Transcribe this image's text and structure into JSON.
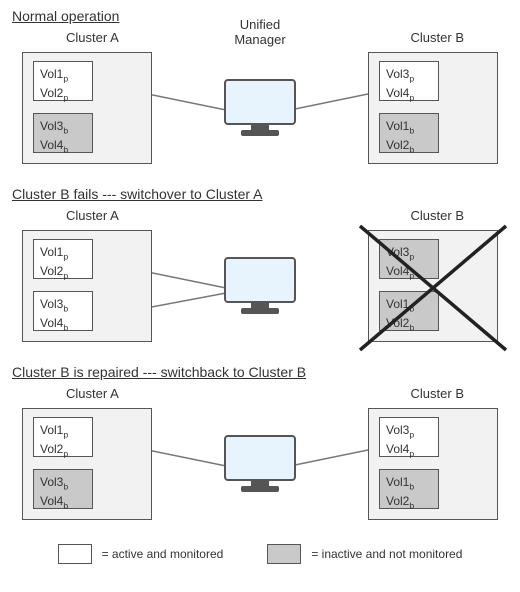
{
  "labels": {
    "unified_manager_line1": "Unified",
    "unified_manager_line2": "Manager",
    "cluster_a": "Cluster A",
    "cluster_b": "Cluster B"
  },
  "volumes": {
    "vol1p": "Vol1<sub>p</sub>",
    "vol2p": "Vol2<sub>p</sub>",
    "vol3p": "Vol3<sub>p</sub>",
    "vol4p": "Vol4<sub>p</sub>",
    "vol1b": "Vol1<sub>b</sub>",
    "vol2b": "Vol2<sub>b</sub>",
    "vol3b": "Vol3<sub>b</sub>",
    "vol4b": "Vol4<sub>b</sub>"
  },
  "scenarios": {
    "s1": {
      "title": "Normal operation"
    },
    "s2": {
      "title": "Cluster B fails --- switchover to Cluster A"
    },
    "s3": {
      "title": "Cluster B is repaired --- switchback to Cluster B"
    }
  },
  "legend": {
    "active": "= active and monitored",
    "inactive": "= inactive and not monitored"
  },
  "style": {
    "active_bg": "#ffffff",
    "inactive_bg": "#c9c9c9",
    "cluster_bg": "#f2f2f2",
    "border_color": "#555555",
    "line_color": "#777777",
    "cross_color": "#222222",
    "text_color": "#333333",
    "monitor_screen": "#e8f4fd",
    "monitor_frame": "#555555"
  },
  "line_paths": {
    "normal": [
      "M92,55 L214,80",
      "M400,55 L278,80"
    ],
    "switchover": [
      "M92,55 L214,80",
      "M92,108 L214,85"
    ],
    "switchback": [
      "M92,55 L214,80",
      "M400,55 L278,80"
    ]
  }
}
